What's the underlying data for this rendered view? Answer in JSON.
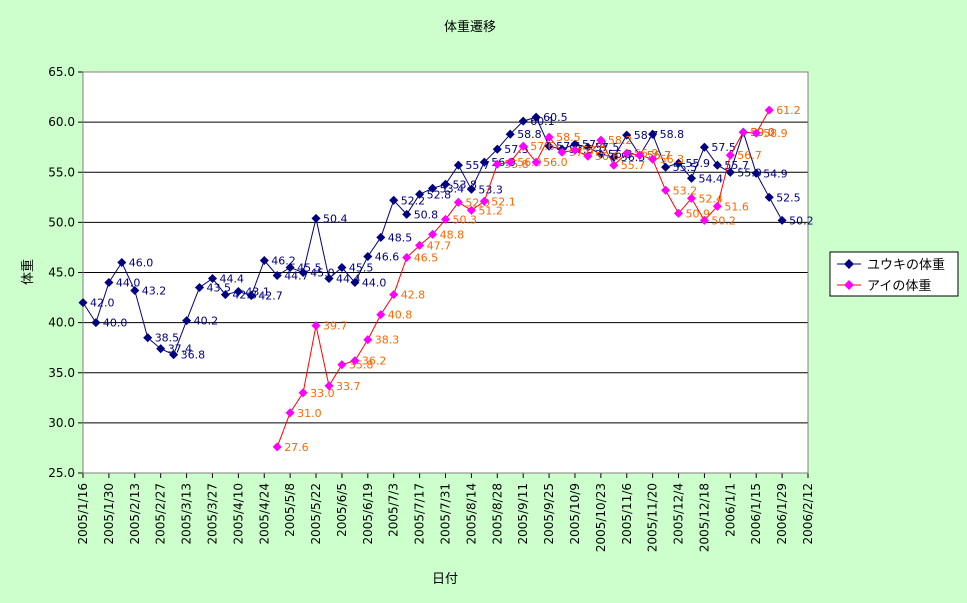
{
  "chart_data": {
    "type": "line",
    "title": "体重遷移",
    "xlabel": "日付",
    "ylabel": "体重",
    "ylim": [
      25.0,
      65.0
    ],
    "yticks": [
      "25.0",
      "30.0",
      "35.0",
      "40.0",
      "45.0",
      "50.0",
      "55.0",
      "60.0",
      "65.0"
    ],
    "xticks": [
      "2005/1/16",
      "2005/1/30",
      "2005/2/13",
      "2005/2/27",
      "2005/3/13",
      "2005/3/27",
      "2005/4/10",
      "2005/4/24",
      "2005/5/8",
      "2005/5/22",
      "2005/6/5",
      "2005/6/19",
      "2005/7/3",
      "2005/7/17",
      "2005/7/31",
      "2005/8/14",
      "2005/8/28",
      "2005/9/11",
      "2005/9/25",
      "2005/10/9",
      "2005/10/23",
      "2005/11/6",
      "2005/11/20",
      "2005/12/4",
      "2005/12/18",
      "2006/1/1",
      "2006/1/15",
      "2006/1/29",
      "2006/2/12"
    ],
    "grid": true,
    "legend_position": "right",
    "plot_background": "#ffffff",
    "series": [
      {
        "name": "ユウキの体重",
        "color": "#000080",
        "label_color": "#000080",
        "points": [
          [
            "2005/1/16",
            42.0
          ],
          [
            "2005/1/23",
            40.0
          ],
          [
            "2005/1/30",
            44.0
          ],
          [
            "2005/2/6",
            46.0
          ],
          [
            "2005/2/13",
            43.2
          ],
          [
            "2005/2/20",
            38.5
          ],
          [
            "2005/2/27",
            37.4
          ],
          [
            "2005/3/6",
            36.8
          ],
          [
            "2005/3/13",
            40.2
          ],
          [
            "2005/3/20",
            43.5
          ],
          [
            "2005/3/27",
            44.4
          ],
          [
            "2005/4/3",
            42.8
          ],
          [
            "2005/4/10",
            43.1
          ],
          [
            "2005/4/17",
            42.7
          ],
          [
            "2005/4/24",
            46.2
          ],
          [
            "2005/5/1",
            44.7
          ],
          [
            "2005/5/8",
            45.5
          ],
          [
            "2005/5/15",
            45.0
          ],
          [
            "2005/5/22",
            50.4
          ],
          [
            "2005/5/29",
            44.4
          ],
          [
            "2005/6/5",
            45.5
          ],
          [
            "2005/6/12",
            44.0
          ],
          [
            "2005/6/19",
            46.6
          ],
          [
            "2005/6/26",
            48.5
          ],
          [
            "2005/7/3",
            52.2
          ],
          [
            "2005/7/10",
            50.8
          ],
          [
            "2005/7/17",
            52.8
          ],
          [
            "2005/7/24",
            53.4
          ],
          [
            "2005/7/31",
            53.8
          ],
          [
            "2005/8/7",
            55.7
          ],
          [
            "2005/8/14",
            53.3
          ],
          [
            "2005/8/21",
            56.0
          ],
          [
            "2005/8/28",
            57.3
          ],
          [
            "2005/9/4",
            58.8
          ],
          [
            "2005/9/11",
            60.1
          ],
          [
            "2005/9/18",
            60.5
          ],
          [
            "2005/9/25",
            57.6
          ],
          [
            "2005/10/2",
            57.3
          ],
          [
            "2005/10/9",
            57.8
          ],
          [
            "2005/10/16",
            57.5
          ],
          [
            "2005/10/23",
            56.8
          ],
          [
            "2005/10/30",
            56.5
          ],
          [
            "2005/11/6",
            58.7
          ],
          [
            "2005/11/13",
            56.7
          ],
          [
            "2005/11/20",
            58.8
          ],
          [
            "2005/11/27",
            55.5
          ],
          [
            "2005/12/4",
            55.9
          ],
          [
            "2005/12/11",
            54.4
          ],
          [
            "2005/12/18",
            57.5
          ],
          [
            "2005/12/25",
            55.7
          ],
          [
            "2006/1/1",
            55.0
          ],
          [
            "2006/1/8",
            59.0
          ],
          [
            "2006/1/15",
            54.9
          ],
          [
            "2006/1/22",
            52.5
          ],
          [
            "2006/1/29",
            50.2
          ]
        ],
        "labels": [
          "42.0",
          "40.0",
          "44.0",
          "46.0",
          "43.2",
          "38.5",
          "37.4",
          "36.8",
          "40.2",
          "43.5",
          "44.4",
          "42.8",
          "43.1",
          "42.7",
          "46.2",
          "44.7",
          "45.5",
          "45.0",
          "50.4",
          "44.4",
          "45.5",
          "44.0",
          "46.6",
          "48.5",
          "52.2",
          "50.8",
          "52.8",
          "53.4",
          "53.8",
          "55.7",
          "53.3",
          "56.0",
          "57.3",
          "58.8",
          "60.1",
          "60.5",
          "57.6",
          "57.3",
          "57.8",
          "57.5",
          "56.8",
          "56.5",
          "58.7",
          "56.7",
          "58.8",
          "55.5",
          "55.9",
          "54.4",
          "57.5",
          "55.7",
          "55.0",
          "59.0",
          "54.9",
          "52.5",
          "50.2"
        ]
      },
      {
        "name": "アイの体重",
        "color": "#ff00ff",
        "line_color": "#ff0000",
        "label_color": "#ff6600",
        "points": [
          [
            "2005/5/1",
            27.6
          ],
          [
            "2005/5/8",
            31.0
          ],
          [
            "2005/5/15",
            33.0
          ],
          [
            "2005/5/22",
            39.7
          ],
          [
            "2005/5/29",
            33.7
          ],
          [
            "2005/6/5",
            35.8
          ],
          [
            "2005/6/12",
            36.2
          ],
          [
            "2005/6/19",
            38.3
          ],
          [
            "2005/6/26",
            40.8
          ],
          [
            "2005/7/3",
            42.8
          ],
          [
            "2005/7/10",
            46.5
          ],
          [
            "2005/7/17",
            47.7
          ],
          [
            "2005/7/24",
            48.8
          ],
          [
            "2005/7/31",
            50.3
          ],
          [
            "2005/8/7",
            52.0
          ],
          [
            "2005/8/14",
            51.2
          ],
          [
            "2005/8/21",
            52.1
          ],
          [
            "2005/8/28",
            55.8
          ],
          [
            "2005/9/4",
            56.0
          ],
          [
            "2005/9/11",
            57.6
          ],
          [
            "2005/9/18",
            56.0
          ],
          [
            "2005/9/25",
            58.5
          ],
          [
            "2005/10/2",
            57.0
          ],
          [
            "2005/10/9",
            57.2
          ],
          [
            "2005/10/16",
            56.6
          ],
          [
            "2005/10/23",
            58.2
          ],
          [
            "2005/10/30",
            55.7
          ],
          [
            "2005/11/6",
            56.9
          ],
          [
            "2005/11/13",
            56.7
          ],
          [
            "2005/11/20",
            56.3
          ],
          [
            "2005/11/27",
            53.2
          ],
          [
            "2005/12/4",
            50.9
          ],
          [
            "2005/12/11",
            52.4
          ],
          [
            "2005/12/18",
            50.2
          ],
          [
            "2005/12/25",
            51.6
          ],
          [
            "2006/1/1",
            56.7
          ],
          [
            "2006/1/8",
            59.0
          ],
          [
            "2006/1/15",
            58.9
          ],
          [
            "2006/1/22",
            61.2
          ]
        ],
        "labels": [
          "27.6",
          "31.0",
          "33.0",
          "39.7",
          "33.7",
          "35.8",
          "36.2",
          "38.3",
          "40.8",
          "42.8",
          "46.5",
          "47.7",
          "48.8",
          "50.3",
          "52.0",
          "51.2",
          "52.1",
          "55.8",
          "56.0",
          "57.6",
          "56.0",
          "58.5",
          "57.0",
          "57.2",
          "56.6",
          "58.2",
          "55.7",
          "56.9",
          "56.7",
          "56.3",
          "53.2",
          "50.9",
          "52.4",
          "50.2",
          "51.6",
          "56.7",
          "59.0",
          "58.9",
          "61.2"
        ]
      }
    ]
  }
}
